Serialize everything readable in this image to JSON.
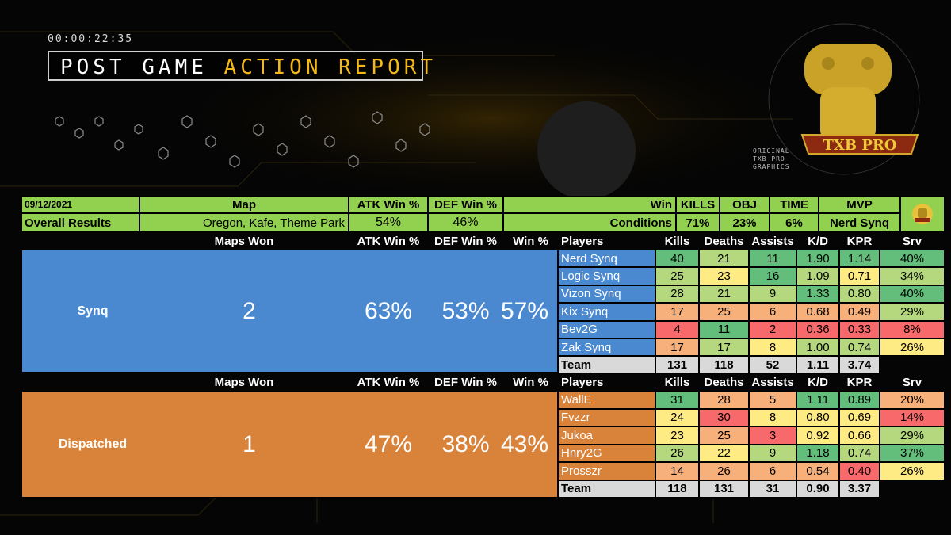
{
  "header": {
    "timer": "00:00:22:35",
    "title_white": "POST GAME",
    "title_yellow": "ACTION REPORT",
    "logo_caption": "ORIGINAL TXB PRO GRAPHICS",
    "logo_banner": "TXB PRO"
  },
  "summary": {
    "date": "09/12/2021",
    "overall_label": "Overall Results",
    "map_header": "Map",
    "maps": "Oregon, Kafe, Theme Park",
    "atk_header": "ATK Win %",
    "atk": "54%",
    "def_header": "DEF Win %",
    "def": "46%",
    "win_label": "Win",
    "conditions_label": "Conditions",
    "kills_header": "KILLS",
    "kills": "71%",
    "obj_header": "OBJ",
    "obj": "23%",
    "time_header": "TIME",
    "time": "6%",
    "mvp_header": "MVP",
    "mvp": "Nerd Synq"
  },
  "headers": {
    "maps_won": "Maps Won",
    "atk": "ATK Win %",
    "def": "DEF Win %",
    "win": "Win %",
    "players": "Players",
    "kills": "Kills",
    "deaths": "Deaths",
    "assists": "Assists",
    "kd": "K/D",
    "kpr": "KPR",
    "srv": "Srv"
  },
  "teams": [
    {
      "name": "Synq",
      "maps_won": "2",
      "atk": "63%",
      "def": "53%",
      "win": "57%",
      "players": [
        {
          "name": "Nerd Synq",
          "kills": "40",
          "deaths": "21",
          "assists": "11",
          "kd": "1.90",
          "kpr": "1.14",
          "srv": "40%"
        },
        {
          "name": "Logic Synq",
          "kills": "25",
          "deaths": "23",
          "assists": "16",
          "kd": "1.09",
          "kpr": "0.71",
          "srv": "34%"
        },
        {
          "name": "Vizon Synq",
          "kills": "28",
          "deaths": "21",
          "assists": "9",
          "kd": "1.33",
          "kpr": "0.80",
          "srv": "40%"
        },
        {
          "name": "Kix Synq",
          "kills": "17",
          "deaths": "25",
          "assists": "6",
          "kd": "0.68",
          "kpr": "0.49",
          "srv": "29%"
        },
        {
          "name": "Bev2G",
          "kills": "4",
          "deaths": "11",
          "assists": "2",
          "kd": "0.36",
          "kpr": "0.33",
          "srv": "8%"
        },
        {
          "name": "Zak Synq",
          "kills": "17",
          "deaths": "17",
          "assists": "8",
          "kd": "1.00",
          "kpr": "0.74",
          "srv": "26%"
        }
      ],
      "total": {
        "label": "Team",
        "kills": "131",
        "deaths": "118",
        "assists": "52",
        "kd": "1.11",
        "kpr": "3.74"
      }
    },
    {
      "name": "Dispatched",
      "maps_won": "1",
      "atk": "47%",
      "def": "38%",
      "win": "43%",
      "players": [
        {
          "name": "WallE",
          "kills": "31",
          "deaths": "28",
          "assists": "5",
          "kd": "1.11",
          "kpr": "0.89",
          "srv": "20%"
        },
        {
          "name": "Fvzzr",
          "kills": "24",
          "deaths": "30",
          "assists": "8",
          "kd": "0.80",
          "kpr": "0.69",
          "srv": "14%"
        },
        {
          "name": "Jukoa",
          "kills": "23",
          "deaths": "25",
          "assists": "3",
          "kd": "0.92",
          "kpr": "0.66",
          "srv": "29%"
        },
        {
          "name": "Hnry2G",
          "kills": "26",
          "deaths": "22",
          "assists": "9",
          "kd": "1.18",
          "kpr": "0.74",
          "srv": "37%"
        },
        {
          "name": "Prosszr",
          "kills": "14",
          "deaths": "26",
          "assists": "6",
          "kd": "0.54",
          "kpr": "0.40",
          "srv": "26%"
        }
      ],
      "total": {
        "label": "Team",
        "kills": "118",
        "deaths": "131",
        "assists": "31",
        "kd": "0.90",
        "kpr": "3.37"
      }
    }
  ],
  "colors": {
    "heat_green": "#63be7b",
    "heat_lightgreen": "#b5d87f",
    "heat_yellow": "#ffeb84",
    "heat_orange": "#f8b07a",
    "heat_red": "#f8696b",
    "summary_green": "#92d050",
    "team1_blue": "#4a88d0",
    "team2_orange": "#d9823a",
    "accent_yellow": "#f2b81a"
  }
}
